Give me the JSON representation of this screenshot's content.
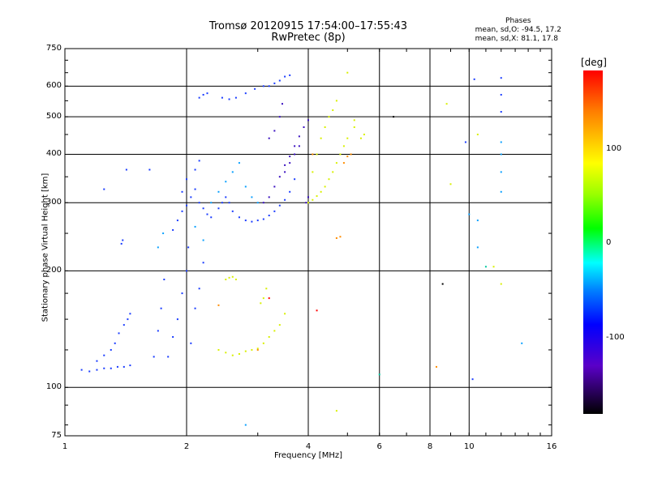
{
  "header": {
    "title_line1": "Tromsø 20120915 17:54:00–17:55:43",
    "title_line2": "RwPretec (8p)"
  },
  "phases": {
    "heading": "Phases",
    "line_o": "mean, sd,O: -94.5, 17.2",
    "line_x": "mean, sd,X:  81.1, 17.8"
  },
  "colorbar": {
    "title": "[deg]",
    "ticks": [
      "100",
      "0",
      "-100"
    ]
  },
  "chart_data": {
    "type": "scatter",
    "xlabel": "Frequency [MHz]",
    "ylabel": "Stationary phase Virtual Height [km]",
    "xscale": "log",
    "yscale": "log",
    "xlim": [
      1,
      16
    ],
    "ylim": [
      75,
      750
    ],
    "xticks": [
      "1",
      "2",
      "4",
      "6",
      "8",
      "10",
      "16"
    ],
    "yticks": [
      "750",
      "600",
      "500",
      "400",
      "300",
      "200",
      "100",
      "75"
    ],
    "grid_x": [
      2,
      4,
      6,
      8,
      10
    ],
    "grid_y": [
      100,
      200,
      300,
      400,
      500,
      600
    ],
    "series": [
      {
        "color": "#1a3cff",
        "points": [
          [
            1.1,
            111
          ],
          [
            1.15,
            110
          ],
          [
            1.2,
            111
          ],
          [
            1.25,
            112
          ],
          [
            1.3,
            112
          ],
          [
            1.35,
            113
          ],
          [
            1.4,
            113
          ],
          [
            1.45,
            114
          ],
          [
            1.2,
            117
          ],
          [
            1.25,
            121
          ],
          [
            1.3,
            125
          ],
          [
            1.33,
            130
          ],
          [
            1.36,
            138
          ],
          [
            1.4,
            145
          ],
          [
            1.43,
            150
          ],
          [
            1.45,
            155
          ],
          [
            1.38,
            235
          ],
          [
            1.39,
            240
          ],
          [
            1.25,
            325
          ],
          [
            1.42,
            365
          ],
          [
            1.66,
            120
          ],
          [
            1.7,
            140
          ],
          [
            1.73,
            160
          ],
          [
            1.76,
            190
          ],
          [
            1.8,
            120
          ],
          [
            1.85,
            135
          ],
          [
            1.9,
            150
          ],
          [
            1.95,
            175
          ],
          [
            2.0,
            200
          ],
          [
            2.02,
            230
          ],
          [
            2.05,
            130
          ],
          [
            2.1,
            160
          ],
          [
            2.15,
            180
          ],
          [
            2.2,
            210
          ],
          [
            1.85,
            255
          ],
          [
            1.9,
            270
          ],
          [
            1.95,
            285
          ],
          [
            2.0,
            295
          ],
          [
            2.05,
            310
          ],
          [
            2.1,
            325
          ],
          [
            2.15,
            300
          ],
          [
            2.2,
            290
          ],
          [
            2.25,
            280
          ],
          [
            2.3,
            275
          ],
          [
            1.95,
            320
          ],
          [
            2.0,
            345
          ],
          [
            2.1,
            365
          ],
          [
            2.15,
            385
          ],
          [
            2.4,
            290
          ],
          [
            2.45,
            300
          ],
          [
            2.5,
            310
          ],
          [
            2.55,
            300
          ],
          [
            2.6,
            285
          ],
          [
            2.7,
            275
          ],
          [
            2.8,
            270
          ],
          [
            2.9,
            268
          ],
          [
            3.0,
            270
          ],
          [
            3.1,
            272
          ],
          [
            3.2,
            278
          ],
          [
            3.3,
            285
          ],
          [
            3.4,
            295
          ],
          [
            3.5,
            305
          ],
          [
            3.6,
            320
          ],
          [
            3.7,
            345
          ],
          [
            2.15,
            560
          ],
          [
            2.2,
            570
          ],
          [
            2.25,
            575
          ],
          [
            2.45,
            560
          ],
          [
            2.55,
            555
          ],
          [
            2.65,
            560
          ],
          [
            2.8,
            575
          ],
          [
            2.95,
            590
          ],
          [
            3.1,
            600
          ],
          [
            3.2,
            600
          ],
          [
            3.3,
            610
          ],
          [
            3.4,
            620
          ],
          [
            3.5,
            635
          ],
          [
            3.6,
            640
          ],
          [
            1.62,
            365
          ],
          [
            10.3,
            625
          ],
          [
            12.0,
            630
          ],
          [
            12.0,
            570
          ],
          [
            12.0,
            515
          ],
          [
            10.2,
            105
          ],
          [
            9.8,
            430
          ]
        ]
      },
      {
        "color": "#3a10c0",
        "points": [
          [
            3.1,
            300
          ],
          [
            3.2,
            310
          ],
          [
            3.3,
            330
          ],
          [
            3.4,
            350
          ],
          [
            3.5,
            375
          ],
          [
            3.6,
            395
          ],
          [
            3.7,
            420
          ],
          [
            3.8,
            445
          ],
          [
            3.9,
            470
          ],
          [
            4.0,
            490
          ],
          [
            3.5,
            360
          ],
          [
            3.6,
            380
          ],
          [
            3.7,
            400
          ],
          [
            3.8,
            420
          ],
          [
            3.95,
            300
          ],
          [
            4.0,
            310
          ],
          [
            3.2,
            440
          ],
          [
            3.3,
            460
          ],
          [
            3.4,
            500
          ],
          [
            3.45,
            540
          ]
        ]
      },
      {
        "color": "#d8f000",
        "points": [
          [
            2.4,
            125
          ],
          [
            2.5,
            123
          ],
          [
            2.6,
            121
          ],
          [
            2.7,
            122
          ],
          [
            2.8,
            124
          ],
          [
            2.9,
            125
          ],
          [
            3.0,
            126
          ],
          [
            3.1,
            130
          ],
          [
            3.2,
            135
          ],
          [
            3.3,
            140
          ],
          [
            3.4,
            145
          ],
          [
            3.5,
            155
          ],
          [
            2.5,
            190
          ],
          [
            2.55,
            192
          ],
          [
            2.6,
            193
          ],
          [
            2.65,
            190
          ],
          [
            3.05,
            165
          ],
          [
            3.1,
            170
          ],
          [
            3.15,
            180
          ],
          [
            4.0,
            300
          ],
          [
            4.1,
            305
          ],
          [
            4.2,
            312
          ],
          [
            4.3,
            320
          ],
          [
            4.4,
            330
          ],
          [
            4.5,
            345
          ],
          [
            4.6,
            360
          ],
          [
            4.7,
            380
          ],
          [
            4.8,
            400
          ],
          [
            4.9,
            420
          ],
          [
            5.0,
            440
          ],
          [
            5.2,
            470
          ],
          [
            4.1,
            360
          ],
          [
            4.2,
            400
          ],
          [
            4.3,
            440
          ],
          [
            4.4,
            470
          ],
          [
            4.5,
            500
          ],
          [
            4.6,
            520
          ],
          [
            4.7,
            550
          ],
          [
            5.0,
            650
          ],
          [
            5.2,
            490
          ],
          [
            5.4,
            440
          ],
          [
            5.5,
            450
          ],
          [
            8.8,
            540
          ],
          [
            9.0,
            335
          ],
          [
            10.5,
            450
          ],
          [
            12.0,
            185
          ],
          [
            11.5,
            205
          ],
          [
            4.7,
            87
          ]
        ]
      },
      {
        "color": "#0aa0ff",
        "points": [
          [
            2.3,
            300
          ],
          [
            2.4,
            320
          ],
          [
            2.5,
            340
          ],
          [
            2.6,
            360
          ],
          [
            2.7,
            380
          ],
          [
            2.8,
            330
          ],
          [
            2.9,
            310
          ],
          [
            3.0,
            300
          ],
          [
            1.7,
            230
          ],
          [
            1.75,
            250
          ],
          [
            2.1,
            260
          ],
          [
            2.2,
            240
          ],
          [
            12.0,
            430
          ],
          [
            12.0,
            400
          ],
          [
            12.0,
            360
          ],
          [
            12.0,
            320
          ],
          [
            10.5,
            270
          ],
          [
            10.5,
            230
          ],
          [
            13.5,
            130
          ],
          [
            2.8,
            80
          ],
          [
            10.0,
            280
          ]
        ]
      },
      {
        "color": "#ff8c00",
        "points": [
          [
            4.9,
            380
          ],
          [
            5.0,
            395
          ],
          [
            5.1,
            400
          ],
          [
            4.1,
            400
          ],
          [
            3.0,
            125
          ],
          [
            2.4,
            163
          ],
          [
            8.3,
            113
          ],
          [
            4.7,
            243
          ],
          [
            4.8,
            245
          ]
        ]
      },
      {
        "color": "#ff0000",
        "points": [
          [
            4.2,
            158
          ],
          [
            3.2,
            170
          ]
        ]
      },
      {
        "color": "#000000",
        "points": [
          [
            6.5,
            500
          ],
          [
            8.6,
            185
          ]
        ]
      },
      {
        "color": "#00c8a0",
        "points": [
          [
            6.0,
            108
          ],
          [
            11.0,
            205
          ]
        ]
      }
    ]
  }
}
